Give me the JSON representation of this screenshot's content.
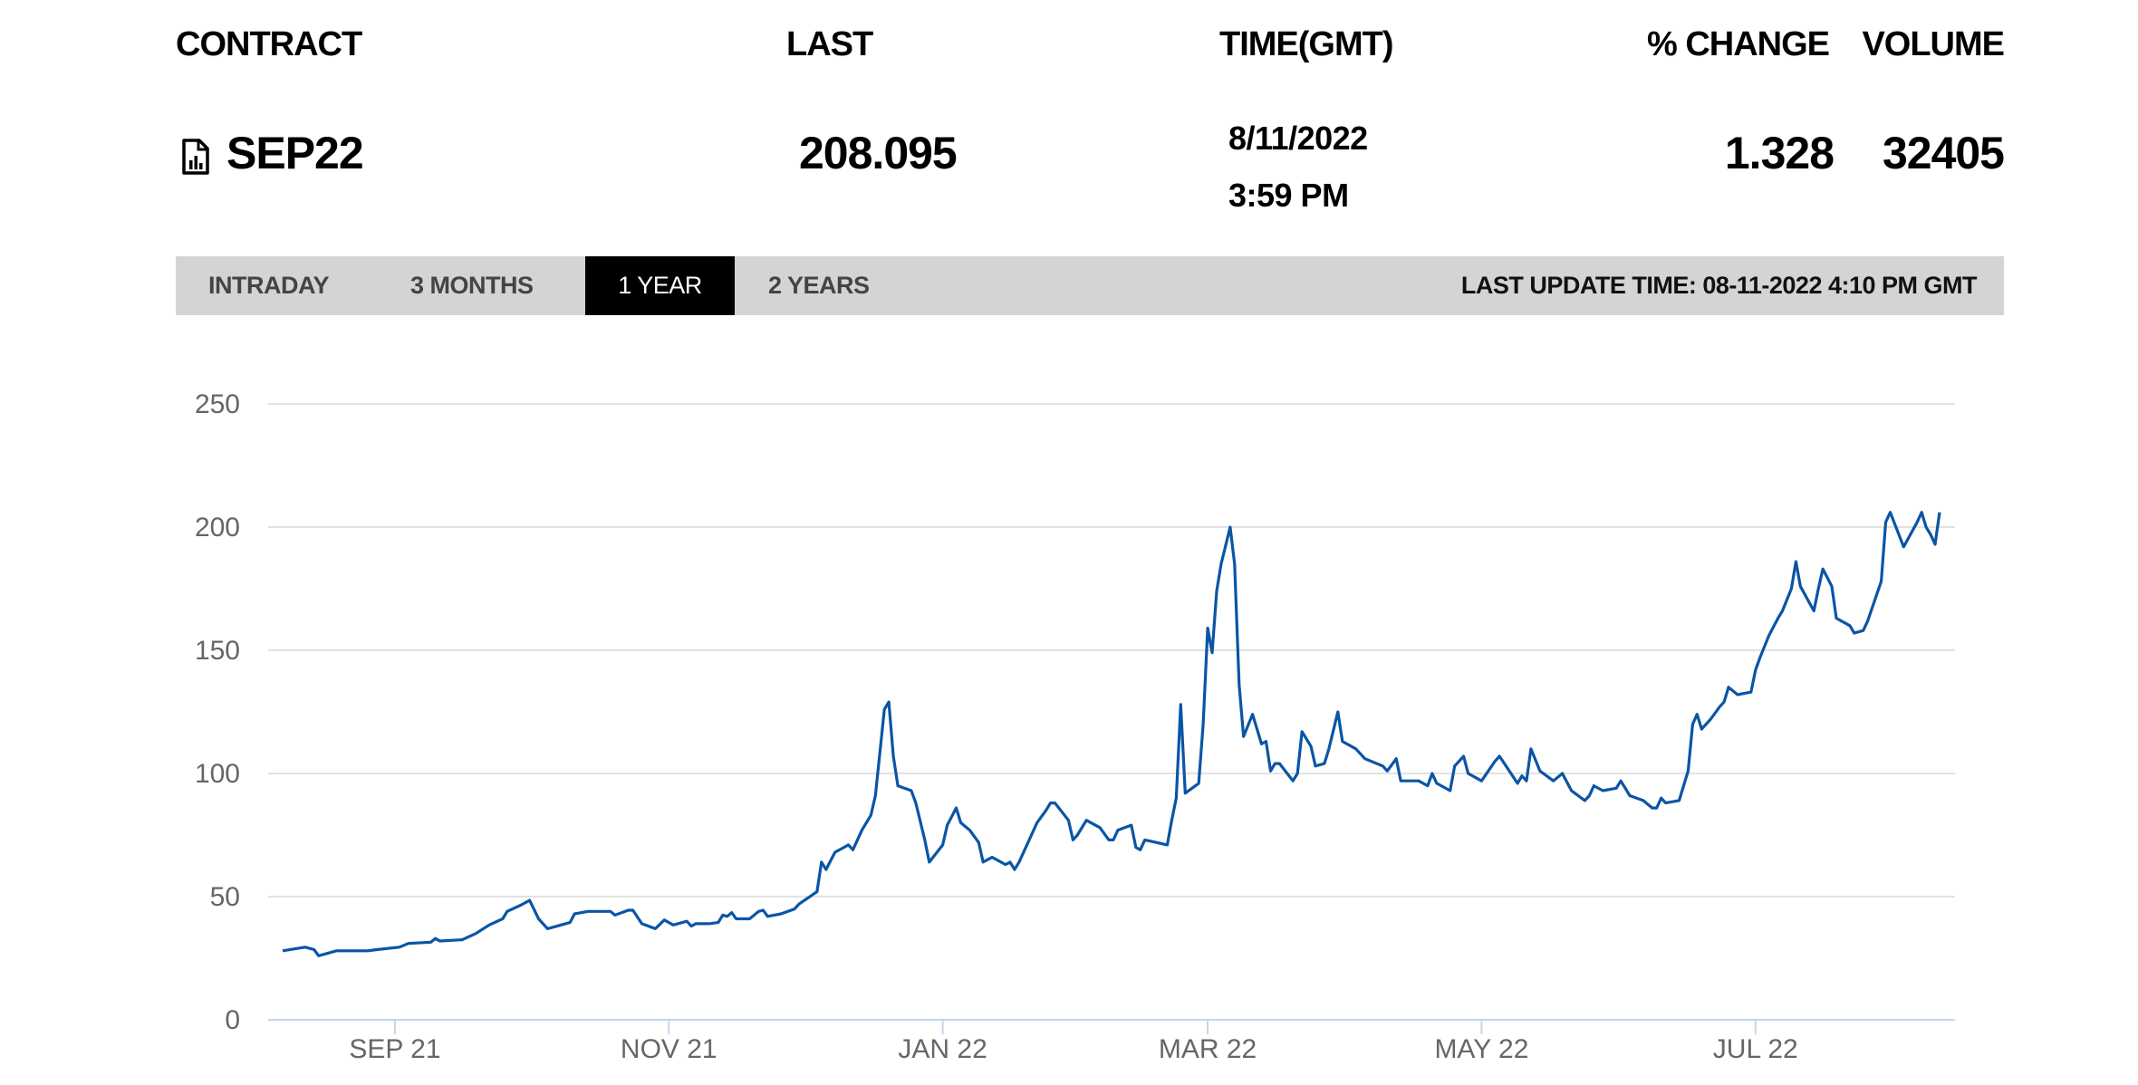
{
  "header": {
    "contract": "CONTRACT",
    "last": "LAST",
    "time": "TIME(GMT)",
    "change": "% CHANGE",
    "volume": "VOLUME"
  },
  "quote": {
    "contract": "SEP22",
    "contract_icon": "document-chart-icon",
    "last": "208.095",
    "date": "8/11/2022",
    "time": "3:59 PM",
    "change": "1.328",
    "volume": "32405"
  },
  "tabs": [
    {
      "label": "INTRADAY",
      "active": false
    },
    {
      "label": "3 MONTHS",
      "active": false
    },
    {
      "label": "1 YEAR",
      "active": true
    },
    {
      "label": "2 YEARS",
      "active": false
    }
  ],
  "last_update": "LAST UPDATE TIME: 08-11-2022 4:10 PM GMT",
  "chart_data": {
    "type": "line",
    "title": "",
    "xlabel": "",
    "ylabel": "",
    "ylim": [
      0,
      250
    ],
    "xlim": [
      "2021-08-07",
      "2022-08-11"
    ],
    "grid": true,
    "line_color": "#0a55a5",
    "yticks": [
      0,
      50,
      100,
      150,
      200,
      250
    ],
    "xticks": [
      {
        "date": "2021-09-01",
        "label": "SEP 21"
      },
      {
        "date": "2021-11-01",
        "label": "NOV 21"
      },
      {
        "date": "2022-01-01",
        "label": "JAN 22"
      },
      {
        "date": "2022-03-01",
        "label": "MAR 22"
      },
      {
        "date": "2022-05-01",
        "label": "MAY 22"
      },
      {
        "date": "2022-07-01",
        "label": "JUL 22"
      }
    ],
    "series": [
      {
        "points": [
          [
            "2021-08-07",
            28
          ],
          [
            "2021-08-12",
            29.5
          ],
          [
            "2021-08-14",
            28.5
          ],
          [
            "2021-08-15",
            26
          ],
          [
            "2021-08-19",
            28
          ],
          [
            "2021-08-26",
            28
          ],
          [
            "2021-08-28",
            28.5
          ],
          [
            "2021-09-02",
            29.5
          ],
          [
            "2021-09-04",
            31
          ],
          [
            "2021-09-09",
            31.5
          ],
          [
            "2021-09-10",
            33
          ],
          [
            "2021-09-11",
            32
          ],
          [
            "2021-09-16",
            32.5
          ],
          [
            "2021-09-19",
            35
          ],
          [
            "2021-09-22",
            38.5
          ],
          [
            "2021-09-25",
            41
          ],
          [
            "2021-09-26",
            44
          ],
          [
            "2021-09-29",
            46.5
          ],
          [
            "2021-10-01",
            48.5
          ],
          [
            "2021-10-03",
            41
          ],
          [
            "2021-10-05",
            37
          ],
          [
            "2021-10-08",
            38.5
          ],
          [
            "2021-10-10",
            39.5
          ],
          [
            "2021-10-11",
            43
          ],
          [
            "2021-10-14",
            44
          ],
          [
            "2021-10-19",
            44
          ],
          [
            "2021-10-20",
            42.5
          ],
          [
            "2021-10-23",
            44.5
          ],
          [
            "2021-10-24",
            44.5
          ],
          [
            "2021-10-26",
            39
          ],
          [
            "2021-10-29",
            37
          ],
          [
            "2021-10-31",
            40.5
          ],
          [
            "2021-11-02",
            38.5
          ],
          [
            "2021-11-05",
            40
          ],
          [
            "2021-11-06",
            38
          ],
          [
            "2021-11-07",
            39
          ],
          [
            "2021-11-10",
            39
          ],
          [
            "2021-11-12",
            39.5
          ],
          [
            "2021-11-13",
            42.5
          ],
          [
            "2021-11-14",
            42
          ],
          [
            "2021-11-15",
            43.5
          ],
          [
            "2021-11-16",
            41
          ],
          [
            "2021-11-19",
            41
          ],
          [
            "2021-11-21",
            44
          ],
          [
            "2021-11-22",
            44.5
          ],
          [
            "2021-11-23",
            42
          ],
          [
            "2021-11-26",
            43
          ],
          [
            "2021-11-29",
            45
          ],
          [
            "2021-11-30",
            47
          ],
          [
            "2021-12-02",
            49.5
          ],
          [
            "2021-12-04",
            52
          ],
          [
            "2021-12-05",
            64
          ],
          [
            "2021-12-06",
            61
          ],
          [
            "2021-12-08",
            68
          ],
          [
            "2021-12-10",
            70
          ],
          [
            "2021-12-11",
            71
          ],
          [
            "2021-12-12",
            69
          ],
          [
            "2021-12-14",
            77
          ],
          [
            "2021-12-16",
            83
          ],
          [
            "2021-12-17",
            91
          ],
          [
            "2021-12-19",
            126
          ],
          [
            "2021-12-20",
            129
          ],
          [
            "2021-12-21",
            107
          ],
          [
            "2021-12-22",
            95
          ],
          [
            "2021-12-25",
            93
          ],
          [
            "2021-12-26",
            88
          ],
          [
            "2021-12-28",
            73
          ],
          [
            "2021-12-29",
            64
          ],
          [
            "2022-01-01",
            71
          ],
          [
            "2022-01-02",
            79
          ],
          [
            "2022-01-04",
            86
          ],
          [
            "2022-01-05",
            80
          ],
          [
            "2022-01-07",
            77
          ],
          [
            "2022-01-09",
            72
          ],
          [
            "2022-01-10",
            64
          ],
          [
            "2022-01-12",
            66
          ],
          [
            "2022-01-15",
            63
          ],
          [
            "2022-01-16",
            64
          ],
          [
            "2022-01-17",
            61
          ],
          [
            "2022-01-18",
            64
          ],
          [
            "2022-01-20",
            72
          ],
          [
            "2022-01-22",
            80
          ],
          [
            "2022-01-24",
            85
          ],
          [
            "2022-01-25",
            88
          ],
          [
            "2022-01-26",
            88
          ],
          [
            "2022-01-29",
            81
          ],
          [
            "2022-01-30",
            73
          ],
          [
            "2022-01-31",
            75
          ],
          [
            "2022-02-02",
            81
          ],
          [
            "2022-02-05",
            78
          ],
          [
            "2022-02-07",
            73
          ],
          [
            "2022-02-08",
            73
          ],
          [
            "2022-02-09",
            77
          ],
          [
            "2022-02-12",
            79
          ],
          [
            "2022-02-13",
            70
          ],
          [
            "2022-02-14",
            69
          ],
          [
            "2022-02-15",
            73
          ],
          [
            "2022-02-20",
            71
          ],
          [
            "2022-02-21",
            81
          ],
          [
            "2022-02-22",
            90
          ],
          [
            "2022-02-23",
            128
          ],
          [
            "2022-02-24",
            92
          ],
          [
            "2022-02-27",
            96
          ],
          [
            "2022-02-28",
            120
          ],
          [
            "2022-03-01",
            159
          ],
          [
            "2022-03-02",
            149
          ],
          [
            "2022-03-03",
            174
          ],
          [
            "2022-03-04",
            185
          ],
          [
            "2022-03-06",
            200
          ],
          [
            "2022-03-07",
            185
          ],
          [
            "2022-03-08",
            136
          ],
          [
            "2022-03-09",
            115
          ],
          [
            "2022-03-11",
            124
          ],
          [
            "2022-03-13",
            112
          ],
          [
            "2022-03-14",
            113
          ],
          [
            "2022-03-15",
            101
          ],
          [
            "2022-03-16",
            104
          ],
          [
            "2022-03-17",
            104
          ],
          [
            "2022-03-20",
            97
          ],
          [
            "2022-03-21",
            100
          ],
          [
            "2022-03-22",
            117
          ],
          [
            "2022-03-24",
            111
          ],
          [
            "2022-03-25",
            103
          ],
          [
            "2022-03-27",
            104
          ],
          [
            "2022-03-28",
            110
          ],
          [
            "2022-03-30",
            125
          ],
          [
            "2022-03-31",
            113
          ],
          [
            "2022-04-03",
            110
          ],
          [
            "2022-04-05",
            106
          ],
          [
            "2022-04-09",
            103
          ],
          [
            "2022-04-10",
            101
          ],
          [
            "2022-04-12",
            106
          ],
          [
            "2022-04-13",
            97
          ],
          [
            "2022-04-17",
            97
          ],
          [
            "2022-04-19",
            95
          ],
          [
            "2022-04-20",
            100
          ],
          [
            "2022-04-21",
            96
          ],
          [
            "2022-04-24",
            93
          ],
          [
            "2022-04-25",
            103
          ],
          [
            "2022-04-27",
            107
          ],
          [
            "2022-04-28",
            100
          ],
          [
            "2022-05-01",
            97
          ],
          [
            "2022-05-04",
            105
          ],
          [
            "2022-05-05",
            107
          ],
          [
            "2022-05-09",
            96
          ],
          [
            "2022-05-10",
            99
          ],
          [
            "2022-05-11",
            97
          ],
          [
            "2022-05-12",
            110
          ],
          [
            "2022-05-14",
            101
          ],
          [
            "2022-05-17",
            97
          ],
          [
            "2022-05-19",
            100
          ],
          [
            "2022-05-21",
            93
          ],
          [
            "2022-05-24",
            89
          ],
          [
            "2022-05-25",
            91
          ],
          [
            "2022-05-26",
            95
          ],
          [
            "2022-05-28",
            93
          ],
          [
            "2022-05-31",
            94
          ],
          [
            "2022-06-01",
            97
          ],
          [
            "2022-06-03",
            91
          ],
          [
            "2022-06-06",
            89
          ],
          [
            "2022-06-08",
            86
          ],
          [
            "2022-06-09",
            86
          ],
          [
            "2022-06-10",
            90
          ],
          [
            "2022-06-11",
            88
          ],
          [
            "2022-06-14",
            89
          ],
          [
            "2022-06-16",
            101
          ],
          [
            "2022-06-17",
            120
          ],
          [
            "2022-06-18",
            124
          ],
          [
            "2022-06-19",
            118
          ],
          [
            "2022-06-21",
            122
          ],
          [
            "2022-06-23",
            127
          ],
          [
            "2022-06-24",
            129
          ],
          [
            "2022-06-25",
            135
          ],
          [
            "2022-06-27",
            132
          ],
          [
            "2022-06-30",
            133
          ],
          [
            "2022-07-01",
            142
          ],
          [
            "2022-07-02",
            147
          ],
          [
            "2022-07-04",
            156
          ],
          [
            "2022-07-06",
            163
          ],
          [
            "2022-07-07",
            166
          ],
          [
            "2022-07-09",
            175
          ],
          [
            "2022-07-10",
            186
          ],
          [
            "2022-07-11",
            176
          ],
          [
            "2022-07-14",
            166
          ],
          [
            "2022-07-15",
            175
          ],
          [
            "2022-07-16",
            183
          ],
          [
            "2022-07-18",
            176
          ],
          [
            "2022-07-19",
            163
          ],
          [
            "2022-07-22",
            160
          ],
          [
            "2022-07-23",
            157
          ],
          [
            "2022-07-25",
            158
          ],
          [
            "2022-07-26",
            162
          ],
          [
            "2022-07-29",
            178
          ],
          [
            "2022-07-30",
            202
          ],
          [
            "2022-07-31",
            206
          ],
          [
            "2022-08-03",
            192
          ],
          [
            "2022-08-06",
            202
          ],
          [
            "2022-08-07",
            206
          ],
          [
            "2022-08-08",
            200
          ],
          [
            "2022-08-09",
            197
          ],
          [
            "2022-08-10",
            193
          ],
          [
            "2022-08-11",
            206
          ]
        ]
      }
    ]
  }
}
